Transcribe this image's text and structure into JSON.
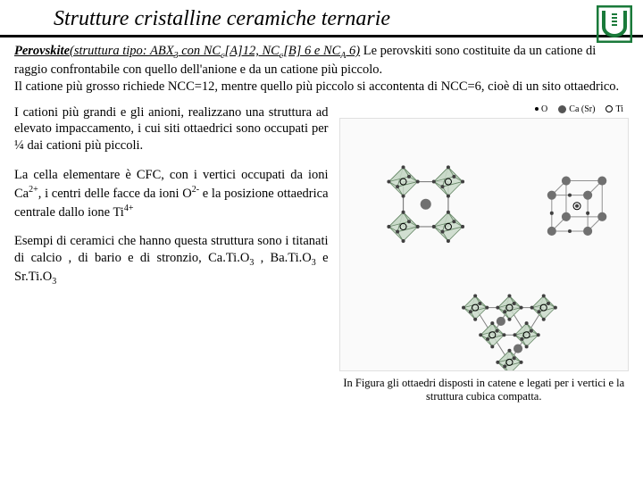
{
  "title": "Strutture cristalline ceramiche ternarie",
  "intro": {
    "lead": "Perovskite",
    "struct_pre": "(struttura tipo: ABX",
    "struct_sub1": "3",
    "struct_mid1": " con NC",
    "struct_subc1": "c",
    "struct_mid2": "[A]12, NC",
    "struct_subc2": "c",
    "struct_mid3": "[B] 6 e NC",
    "struct_subA": "A",
    "struct_end": " 6)",
    "body": " Le perovskiti sono costituite da un catione di raggio confrontabile con quello dell'anione e da un catione più piccolo.\nIl catione più grosso richiede NCC=12, mentre quello più piccolo si accontenta di NCC=6, cioè di un sito ottaedrico."
  },
  "p1": "I cationi più grandi e gli anioni, realizzano una struttura ad elevato impaccamento, i cui siti ottaedrici sono occupati per ¼ dai cationi più piccoli.",
  "p2_a": "La cella elementare è CFC, con i vertici occupati da ioni Ca",
  "p2_b": ", i centri delle facce da ioni O",
  "p2_c": " e la posizione ottaedrica centrale dallo ione Ti",
  "p3_a": "Esempi di ceramici che hanno questa struttura sono i titanati di calcio , di bario e di stronzio, Ca.Ti.O",
  "p3_b": " , Ba.Ti.O",
  "p3_c": " e Sr.Ti.O",
  "caption": "In Figura gli ottaedri disposti in catene e legati per i vertici e la struttura cubica compatta.",
  "legend": {
    "o": "O",
    "ca": "Ca (Sr)",
    "ti": "Ti"
  },
  "colors": {
    "octa_fill": "#c9d9c9",
    "octa_stroke": "#6a8a6a",
    "node_fill": "#707070",
    "node_small": "#404040",
    "bond": "#808080",
    "cube_stroke": "#909090"
  }
}
